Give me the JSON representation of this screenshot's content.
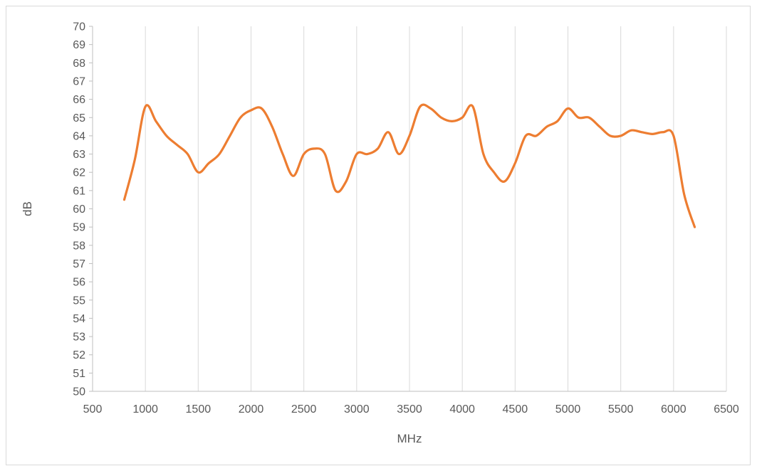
{
  "chart_data": {
    "type": "line",
    "title": "",
    "xlabel": "MHz",
    "ylabel": "dB",
    "xlim": [
      500,
      6500
    ],
    "ylim": [
      50,
      70
    ],
    "x_ticks": [
      500,
      1000,
      1500,
      2000,
      2500,
      3000,
      3500,
      4000,
      4500,
      5000,
      5500,
      6000,
      6500
    ],
    "y_ticks": [
      50,
      51,
      52,
      53,
      54,
      55,
      56,
      57,
      58,
      59,
      60,
      61,
      62,
      63,
      64,
      65,
      66,
      67,
      68,
      69,
      70
    ],
    "grid": "vertical",
    "legend": "none",
    "series": [
      {
        "color": "#ED7D31",
        "smooth": true,
        "x": [
          800,
          900,
          1000,
          1100,
          1200,
          1300,
          1400,
          1500,
          1600,
          1700,
          1800,
          1900,
          2000,
          2100,
          2200,
          2300,
          2400,
          2500,
          2600,
          2700,
          2800,
          2900,
          3000,
          3100,
          3200,
          3300,
          3400,
          3500,
          3600,
          3700,
          3800,
          3900,
          4000,
          4100,
          4200,
          4300,
          4400,
          4500,
          4600,
          4700,
          4800,
          4900,
          5000,
          5100,
          5200,
          5300,
          5400,
          5500,
          5600,
          5700,
          5800,
          5900,
          6000,
          6100,
          6200
        ],
        "y": [
          60.5,
          62.7,
          65.6,
          64.8,
          64.0,
          63.5,
          63.0,
          62.0,
          62.5,
          63.0,
          64.0,
          65.0,
          65.4,
          65.5,
          64.5,
          63.0,
          61.8,
          63.0,
          63.3,
          63.0,
          61.0,
          61.5,
          63.0,
          63.0,
          63.3,
          64.2,
          63.0,
          64.0,
          65.6,
          65.5,
          65.0,
          64.8,
          65.0,
          65.6,
          63.0,
          62.0,
          61.5,
          62.5,
          64.0,
          64.0,
          64.5,
          64.8,
          65.5,
          65.0,
          65.0,
          64.5,
          64.0,
          64.0,
          64.3,
          64.2,
          64.1,
          64.2,
          64.0,
          60.8,
          59.0
        ]
      }
    ]
  }
}
